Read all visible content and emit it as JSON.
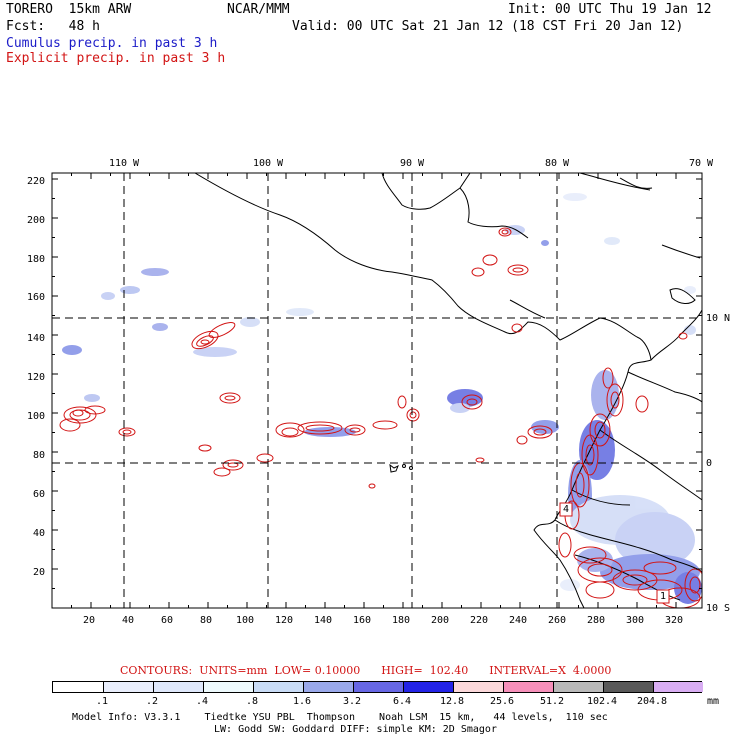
{
  "header": {
    "model_title": "TORERO  15km ARW",
    "source": "NCAR/MMM",
    "init": "Init: 00 UTC Thu 19 Jan 12",
    "forecast": "Fcst:   48 h",
    "valid": "Valid: 00 UTC Sat 21 Jan 12 (18 CST Fri 20 Jan 12)",
    "legend_cumulus": "Cumulus precip. in past 3 h",
    "legend_explicit": "Explicit precip. in past 3 h"
  },
  "map": {
    "top_axis_labels": [
      "110 W",
      "100 W",
      "90 W",
      "80 W",
      "70 W"
    ],
    "right_axis_labels": [
      "10 N",
      "0",
      "10 S"
    ],
    "y_ticks": [
      "220",
      "200",
      "180",
      "160",
      "140",
      "120",
      "100",
      "80",
      "60",
      "40",
      "20"
    ],
    "x_ticks": [
      "20",
      "40",
      "60",
      "80",
      "100",
      "120",
      "140",
      "160",
      "180",
      "200",
      "220",
      "240",
      "260",
      "280",
      "300",
      "320"
    ],
    "box_labels": [
      "4",
      "1"
    ]
  },
  "contours": {
    "label": "CONTOURS:  UNITS=mm  LOW= 0.10000      HIGH=  102.40      INTERVAL=X  4.0000"
  },
  "colorbar": {
    "levels": [
      ".1",
      ".2",
      ".4",
      ".8",
      "1.6",
      "3.2",
      "6.4",
      "12.8",
      "25.6",
      "51.2",
      "102.4",
      "204.8"
    ],
    "unit": "mm",
    "colors": [
      "#ffffff",
      "#e9eefc",
      "#dfe8fb",
      "#eefafd",
      "#c9dcf6",
      "#9aa9ea",
      "#6767e4",
      "#2323e6",
      "#fbd8da",
      "#f690ba",
      "#b9b9b9",
      "#595959",
      "#d9aef3"
    ]
  },
  "footer": {
    "line1": "Model Info: V3.3.1    Tiedtke YSU PBL  Thompson    Noah LSM  15 km,   44 levels,  110 sec",
    "line2": "LW: Godd SW: Goddard DIFF: simple KM: 2D Smagor"
  }
}
